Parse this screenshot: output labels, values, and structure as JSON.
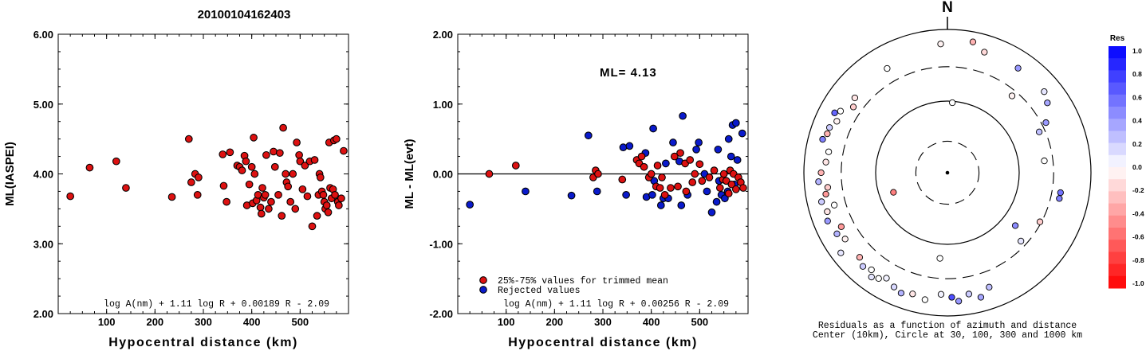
{
  "title": "20100104162403",
  "chart_data": [
    {
      "type": "scatter",
      "xlabel": "Hypocentral distance (km)",
      "ylabel": "ML(IASPEI)",
      "xlim": [
        0,
        600
      ],
      "ylim": [
        2.0,
        6.0
      ],
      "x_ticks": [
        "100",
        "200",
        "300",
        "400",
        "500"
      ],
      "y_ticks": [
        "2.00",
        "3.00",
        "4.00",
        "5.00",
        "6.00"
      ],
      "formula": "log A(nm) + 1.11 log R + 0.00189 R - 2.09",
      "point_color": "#dd1111",
      "points": [
        [
          25,
          3.68
        ],
        [
          65,
          4.09
        ],
        [
          120,
          4.18
        ],
        [
          140,
          3.8
        ],
        [
          235,
          3.67
        ],
        [
          270,
          4.5
        ],
        [
          275,
          3.88
        ],
        [
          283,
          4.0
        ],
        [
          288,
          3.7
        ],
        [
          290,
          3.95
        ],
        [
          340,
          4.28
        ],
        [
          342,
          3.83
        ],
        [
          348,
          3.6
        ],
        [
          355,
          4.31
        ],
        [
          370,
          4.12
        ],
        [
          375,
          4.1
        ],
        [
          380,
          4.05
        ],
        [
          385,
          4.26
        ],
        [
          388,
          4.18
        ],
        [
          390,
          3.55
        ],
        [
          395,
          3.85
        ],
        [
          400,
          4.1
        ],
        [
          402,
          3.58
        ],
        [
          404,
          4.52
        ],
        [
          406,
          4.0
        ],
        [
          410,
          3.62
        ],
        [
          413,
          3.7
        ],
        [
          418,
          3.52
        ],
        [
          420,
          3.43
        ],
        [
          422,
          3.8
        ],
        [
          425,
          3.66
        ],
        [
          428,
          3.7
        ],
        [
          430,
          4.27
        ],
        [
          435,
          3.5
        ],
        [
          440,
          3.6
        ],
        [
          445,
          4.32
        ],
        [
          448,
          4.1
        ],
        [
          455,
          3.7
        ],
        [
          458,
          4.3
        ],
        [
          462,
          3.4
        ],
        [
          465,
          4.66
        ],
        [
          470,
          4.0
        ],
        [
          472,
          3.88
        ],
        [
          475,
          3.82
        ],
        [
          480,
          3.6
        ],
        [
          485,
          4.0
        ],
        [
          490,
          3.5
        ],
        [
          493,
          4.45
        ],
        [
          498,
          4.27
        ],
        [
          500,
          4.18
        ],
        [
          505,
          3.78
        ],
        [
          510,
          4.12
        ],
        [
          515,
          3.68
        ],
        [
          520,
          4.18
        ],
        [
          525,
          3.25
        ],
        [
          530,
          4.2
        ],
        [
          535,
          3.4
        ],
        [
          538,
          3.7
        ],
        [
          540,
          4.0
        ],
        [
          542,
          3.95
        ],
        [
          545,
          3.75
        ],
        [
          548,
          3.7
        ],
        [
          550,
          3.6
        ],
        [
          552,
          3.5
        ],
        [
          555,
          3.55
        ],
        [
          558,
          3.45
        ],
        [
          560,
          4.45
        ],
        [
          562,
          3.8
        ],
        [
          565,
          3.65
        ],
        [
          568,
          3.78
        ],
        [
          570,
          4.48
        ],
        [
          572,
          3.7
        ],
        [
          575,
          4.5
        ],
        [
          578,
          3.6
        ],
        [
          580,
          3.55
        ],
        [
          585,
          3.65
        ],
        [
          590,
          4.33
        ]
      ]
    },
    {
      "type": "scatter",
      "xlabel": "Hypocentral distance (km)",
      "ylabel": "ML - ML(evt)",
      "xlim": [
        0,
        600
      ],
      "ylim": [
        -2.0,
        2.0
      ],
      "x_ticks": [
        "100",
        "200",
        "300",
        "400",
        "500"
      ],
      "y_ticks": [
        "-2.00",
        "-1.00",
        "0.00",
        "1.00",
        "2.00"
      ],
      "annotation": "ML= 4.13",
      "formula": "log A(nm) + 1.11 log R + 0.00256 R - 2.09",
      "legend": [
        "25%-75% values for trimmed mean",
        "Rejected values"
      ],
      "series": [
        {
          "name": "25%-75% values for trimmed mean",
          "color": "#dd1111",
          "points": [
            [
              65,
              0.0
            ],
            [
              120,
              0.12
            ],
            [
              280,
              -0.05
            ],
            [
              285,
              0.05
            ],
            [
              290,
              0.0
            ],
            [
              340,
              -0.08
            ],
            [
              370,
              0.2
            ],
            [
              375,
              0.15
            ],
            [
              380,
              0.25
            ],
            [
              385,
              0.1
            ],
            [
              395,
              -0.05
            ],
            [
              400,
              0.0
            ],
            [
              410,
              -0.18
            ],
            [
              413,
              0.12
            ],
            [
              418,
              -0.2
            ],
            [
              422,
              -0.05
            ],
            [
              428,
              -0.3
            ],
            [
              440,
              -0.2
            ],
            [
              448,
              0.25
            ],
            [
              455,
              -0.18
            ],
            [
              460,
              0.3
            ],
            [
              470,
              0.15
            ],
            [
              472,
              -0.25
            ],
            [
              480,
              0.2
            ],
            [
              485,
              -0.12
            ],
            [
              490,
              0.0
            ],
            [
              500,
              0.14
            ],
            [
              505,
              -0.1
            ],
            [
              520,
              -0.05
            ],
            [
              530,
              0.05
            ],
            [
              542,
              -0.2
            ],
            [
              548,
              -0.08
            ],
            [
              550,
              0.0
            ],
            [
              555,
              -0.1
            ],
            [
              560,
              -0.28
            ],
            [
              563,
              0.05
            ],
            [
              566,
              -0.15
            ],
            [
              570,
              0.0
            ],
            [
              575,
              -0.22
            ],
            [
              580,
              -0.05
            ],
            [
              585,
              -0.12
            ],
            [
              590,
              -0.2
            ]
          ]
        },
        {
          "name": "Rejected values",
          "color": "#0a1acc",
          "points": [
            [
              25,
              -0.44
            ],
            [
              140,
              -0.25
            ],
            [
              235,
              -0.31
            ],
            [
              270,
              0.55
            ],
            [
              288,
              -0.25
            ],
            [
              342,
              0.38
            ],
            [
              348,
              -0.3
            ],
            [
              355,
              0.4
            ],
            [
              388,
              0.3
            ],
            [
              390,
              -0.33
            ],
            [
              402,
              -0.3
            ],
            [
              404,
              0.65
            ],
            [
              406,
              -0.1
            ],
            [
              420,
              -0.45
            ],
            [
              425,
              -0.35
            ],
            [
              430,
              0.15
            ],
            [
              435,
              -0.35
            ],
            [
              445,
              0.45
            ],
            [
              458,
              0.18
            ],
            [
              462,
              -0.45
            ],
            [
              465,
              0.83
            ],
            [
              475,
              -0.3
            ],
            [
              493,
              0.35
            ],
            [
              498,
              0.45
            ],
            [
              510,
              0.0
            ],
            [
              515,
              -0.25
            ],
            [
              525,
              -0.55
            ],
            [
              535,
              -0.4
            ],
            [
              538,
              0.35
            ],
            [
              540,
              -0.1
            ],
            [
              545,
              -0.3
            ],
            [
              552,
              -0.35
            ],
            [
              558,
              -0.25
            ],
            [
              560,
              0.5
            ],
            [
              565,
              0.25
            ],
            [
              568,
              0.7
            ],
            [
              572,
              -0.15
            ],
            [
              575,
              0.73
            ],
            [
              578,
              0.2
            ],
            [
              588,
              0.58
            ]
          ]
        }
      ]
    },
    {
      "type": "polar-scatter",
      "north_label": "N",
      "caption_line1": "Residuals as a function of azimuth and distance",
      "caption_line2": "Center (10km), Circle at 30, 100, 300 and 1000 km",
      "colorbar_title": "Res",
      "colorbar_ticks": [
        "1.0",
        "0.8",
        "0.6",
        "0.4",
        "0.2",
        "0.0",
        "-0.2",
        "-0.4",
        "-0.6",
        "-0.8",
        "-1.0"
      ],
      "colorbar_range": [
        -1.0,
        1.0
      ],
      "color_positive": "#0000ff",
      "color_negative": "#ff0000",
      "points": [
        [
          357,
          0.9,
          -0.05
        ],
        [
          4,
          0.49,
          0.0
        ],
        [
          11,
          0.93,
          -0.3
        ],
        [
          17,
          0.88,
          -0.15
        ],
        [
          34,
          0.88,
          0.4
        ],
        [
          40,
          0.7,
          -0.05
        ],
        [
          50,
          0.88,
          0.1
        ],
        [
          55,
          0.85,
          0.35
        ],
        [
          63,
          0.77,
          0.4
        ],
        [
          66,
          0.7,
          0.25
        ],
        [
          83,
          0.68,
          0.0
        ],
        [
          100,
          0.8,
          0.55
        ],
        [
          103,
          0.8,
          0.5
        ],
        [
          118,
          0.73,
          -0.2
        ],
        [
          128,
          0.6,
          0.45
        ],
        [
          133,
          0.7,
          0.1
        ],
        [
          160,
          0.85,
          0.25
        ],
        [
          165,
          0.9,
          0.35
        ],
        [
          170,
          0.86,
          0.2
        ],
        [
          175,
          0.9,
          0.4
        ],
        [
          178,
          0.87,
          0.7
        ],
        [
          183,
          0.85,
          0.05
        ],
        [
          190,
          0.9,
          0.0
        ],
        [
          196,
          0.88,
          -0.1
        ],
        [
          201,
          0.9,
          0.3
        ],
        [
          205,
          0.88,
          0.15
        ],
        [
          210,
          0.85,
          0.05
        ],
        [
          213,
          0.88,
          0.0
        ],
        [
          216,
          0.9,
          0.1
        ],
        [
          218,
          0.86,
          0.0
        ],
        [
          222,
          0.88,
          0.2
        ],
        [
          226,
          0.85,
          -0.3
        ],
        [
          233,
          0.93,
          0.1
        ],
        [
          237,
          0.85,
          -0.05
        ],
        [
          241,
          0.88,
          0.3
        ],
        [
          243,
          0.83,
          -0.4
        ],
        [
          248,
          0.9,
          0.4
        ],
        [
          252,
          0.88,
          -0.1
        ],
        [
          254,
          0.82,
          0.0
        ],
        [
          257,
          0.9,
          0.2
        ],
        [
          260,
          0.86,
          -0.4
        ],
        [
          263,
          0.84,
          -0.2
        ],
        [
          266,
          0.9,
          0.3
        ],
        [
          270,
          0.88,
          -0.3
        ],
        [
          275,
          0.85,
          -0.1
        ],
        [
          280,
          0.84,
          0.0
        ],
        [
          285,
          0.9,
          0.5
        ],
        [
          288,
          0.88,
          -0.3
        ],
        [
          291,
          0.88,
          0.2
        ],
        [
          295,
          0.85,
          -0.05
        ],
        [
          298,
          0.89,
          0.6
        ],
        [
          300,
          0.86,
          0.0
        ],
        [
          305,
          0.8,
          -0.2
        ],
        [
          309,
          0.83,
          -0.1
        ],
        [
          330,
          0.84,
          0.0
        ],
        [
          250,
          0.4,
          -0.5
        ],
        [
          185,
          0.6,
          0.0
        ]
      ]
    }
  ]
}
